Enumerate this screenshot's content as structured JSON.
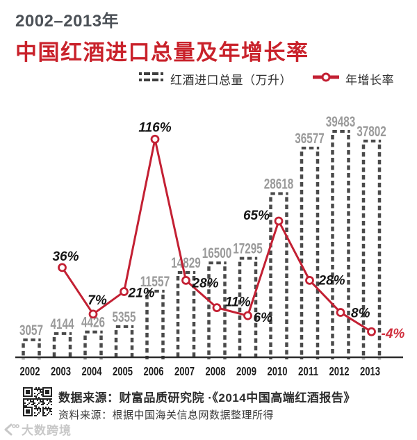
{
  "header": {
    "period": "2002–2013年",
    "title": "中国红酒进口总量及年增长率"
  },
  "legend": {
    "bars_label": "红酒进口总量（万升）",
    "line_label": "年增长率"
  },
  "chart_data": {
    "type": "bar",
    "combo": "bar+line",
    "title": "中国红酒进口总量及年增长率",
    "subtitle": "2002–2013年",
    "categories": [
      "2002",
      "2003",
      "2004",
      "2005",
      "2006",
      "2007",
      "2008",
      "2009",
      "2010",
      "2011",
      "2012",
      "2013"
    ],
    "series": [
      {
        "name": "红酒进口总量（万升）",
        "kind": "bar",
        "values": [
          3057,
          4144,
          4426,
          5355,
          11557,
          14829,
          16500,
          17295,
          28618,
          36577,
          39483,
          37802
        ]
      },
      {
        "name": "年增长率",
        "kind": "line",
        "unit": "%",
        "values": [
          null,
          36,
          7,
          21,
          116,
          28,
          11,
          6,
          65,
          28,
          8,
          -4
        ],
        "point_labels": [
          null,
          "36%",
          "7%",
          "21%",
          "116%",
          "28%",
          "11%",
          "6%",
          "65%",
          "28%",
          "8%",
          "-4%"
        ]
      }
    ],
    "ylim_bar": [
      0,
      46000
    ],
    "ylim_line_pct": [
      -20,
      150
    ],
    "grid": false,
    "legend_position": "top",
    "bar_value_labels": true
  },
  "footer": {
    "source_line1": "数据来源：财富品质研究院 ·《2014中国高端红酒报告》",
    "source_line2": "资料来源：根据中国海关信息网数据整理所得",
    "watermark": "大数跨境"
  },
  "colors": {
    "title_red": "#c9222b",
    "line_red": "#c32033",
    "negative_label_red": "#d02f3d",
    "bar_dash_gray": "#4a4a4a",
    "value_label_gray": "#9a9a9a",
    "axis_dark": "#2b2b2b",
    "year_dark": "#1d1d1d",
    "pct_dark": "#151515"
  }
}
